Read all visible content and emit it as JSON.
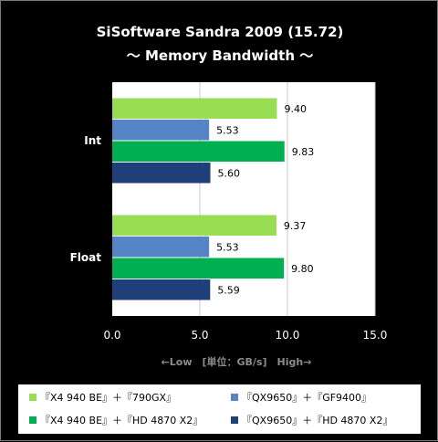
{
  "chart_data": {
    "type": "bar",
    "orientation": "horizontal",
    "title": "SiSoftware Sandra 2009 (15.72)",
    "subtitle": "～ Memory Bandwidth ～",
    "xlabel": "←Low　[単位：GB/s]　High→",
    "ylabel": "",
    "categories": [
      "Int",
      "Float"
    ],
    "xlim": [
      0,
      15
    ],
    "xticks": [
      "0.0",
      "5.0",
      "10.0",
      "15.0"
    ],
    "grid": true,
    "legend_position": "bottom",
    "series": [
      {
        "name": "『X4 940 BE』＋『790GX』",
        "color": "#99dd55",
        "values": [
          9.4,
          9.37
        ],
        "labels": [
          "9.40",
          "9.37"
        ]
      },
      {
        "name": "『QX9650』＋『GF9400』",
        "color": "#5585c6",
        "values": [
          5.53,
          5.53
        ],
        "labels": [
          "5.53",
          "5.53"
        ]
      },
      {
        "name": "『X4 940 BE』＋『HD 4870 X2』",
        "color": "#00b050",
        "values": [
          9.83,
          9.8
        ],
        "labels": [
          "9.83",
          "9.80"
        ]
      },
      {
        "name": "『QX9650』＋『HD 4870 X2』",
        "color": "#1f3f7a",
        "values": [
          5.6,
          5.59
        ],
        "labels": [
          "5.60",
          "5.59"
        ]
      }
    ]
  }
}
